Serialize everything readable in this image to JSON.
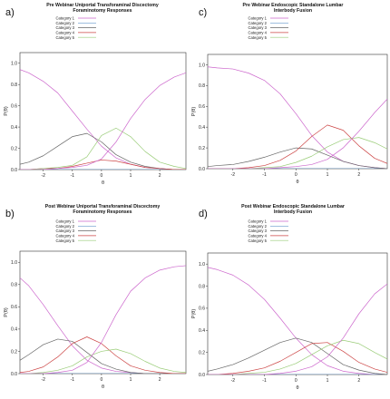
{
  "panels": [
    {
      "letter": "a)",
      "title_lines": [
        "Pre Webinar Uniportal Transforaminal Discectomy",
        "Foraminotomy Responses"
      ]
    },
    {
      "letter": "c)",
      "title_lines": [
        "Pre Webinar Endoscopic Standalone Lumbar",
        "Interbody Fusion"
      ]
    },
    {
      "letter": "b)",
      "title_lines": [
        "Post Webinar Uniportal Transforaminal Discectomy",
        "Foraminotomy Responses"
      ]
    },
    {
      "letter": "d)",
      "title_lines": [
        "Post Webinar Endoscopic Standalone Lumbar",
        "Interbody Fusion"
      ]
    }
  ],
  "legend_labels": [
    "Category 1",
    "Category 2",
    "Category 3",
    "Category 4",
    "Category 5"
  ],
  "colors": [
    "#cc66cc",
    "#6699cc",
    "#666666",
    "#cc4444",
    "#99cc77"
  ],
  "chart_data": [
    {
      "type": "line",
      "title": "Pre Webinar Uniportal Transforaminal Discectomy Foraminotomy Responses",
      "xlabel": "θ",
      "ylabel": "P(θ)",
      "xlim": [
        -2.8,
        2.9
      ],
      "ylim": [
        0,
        1.1
      ],
      "xticks": [
        -2,
        -1,
        0,
        1,
        2
      ],
      "yticks": [
        0.0,
        0.2,
        0.4,
        0.6,
        0.8,
        1.0
      ],
      "grid": false,
      "legend": "top-left",
      "x": [
        -2.8,
        -2.5,
        -2.0,
        -1.5,
        -1.0,
        -0.5,
        0.0,
        0.5,
        1.0,
        1.5,
        2.0,
        2.5,
        2.9
      ],
      "series": [
        {
          "name": "Category 1",
          "values": [
            0.94,
            0.91,
            0.83,
            0.72,
            0.55,
            0.38,
            0.22,
            0.11,
            0.05,
            0.02,
            0.01,
            0.0,
            0.0
          ]
        },
        {
          "name": "Category 2",
          "values": [
            0.0,
            0.0,
            0.0,
            0.0,
            0.0,
            0.0,
            0.0,
            0.0,
            0.0,
            0.0,
            0.0,
            0.0,
            0.0
          ]
        },
        {
          "name": "Category 3",
          "values": [
            0.05,
            0.07,
            0.13,
            0.22,
            0.31,
            0.34,
            0.26,
            0.14,
            0.07,
            0.03,
            0.01,
            0.0,
            0.0
          ]
        },
        {
          "name": "Category 4",
          "values": [
            0.0,
            0.0,
            0.01,
            0.01,
            0.03,
            0.06,
            0.09,
            0.08,
            0.05,
            0.02,
            0.01,
            0.0,
            0.0
          ]
        },
        {
          "name": "Category 5",
          "values": [
            0.0,
            0.0,
            0.01,
            0.02,
            0.04,
            0.12,
            0.32,
            0.39,
            0.31,
            0.17,
            0.07,
            0.03,
            0.01
          ]
        },
        {
          "name": "",
          "values": [
            0.0,
            0.0,
            0.0,
            0.01,
            0.02,
            0.04,
            0.1,
            0.26,
            0.48,
            0.66,
            0.79,
            0.87,
            0.91
          ]
        }
      ]
    },
    {
      "type": "line",
      "title": "Pre Webinar Endoscopic Standalone Lumbar Interbody Fusion",
      "xlabel": "θ",
      "ylabel": "P(θ)",
      "xlim": [
        -2.8,
        2.9
      ],
      "ylim": [
        0,
        1.1
      ],
      "xticks": [
        -2,
        -1,
        0,
        1,
        2
      ],
      "yticks": [
        0.0,
        0.2,
        0.4,
        0.6,
        0.8,
        1.0
      ],
      "grid": false,
      "legend": "top-left",
      "x": [
        -2.8,
        -2.5,
        -2.0,
        -1.5,
        -1.0,
        -0.5,
        0.0,
        0.5,
        1.0,
        1.5,
        2.0,
        2.5,
        2.9
      ],
      "series": [
        {
          "name": "Category 1",
          "values": [
            0.98,
            0.97,
            0.96,
            0.92,
            0.85,
            0.72,
            0.53,
            0.32,
            0.16,
            0.07,
            0.03,
            0.01,
            0.0
          ]
        },
        {
          "name": "Category 2",
          "values": [
            0.0,
            0.0,
            0.0,
            0.0,
            0.0,
            0.0,
            0.0,
            0.0,
            0.0,
            0.0,
            0.0,
            0.0,
            0.0
          ]
        },
        {
          "name": "Category 3",
          "values": [
            0.02,
            0.03,
            0.04,
            0.07,
            0.11,
            0.16,
            0.2,
            0.19,
            0.13,
            0.07,
            0.03,
            0.01,
            0.0
          ]
        },
        {
          "name": "Category 4",
          "values": [
            0.0,
            0.0,
            0.0,
            0.01,
            0.03,
            0.08,
            0.17,
            0.31,
            0.42,
            0.37,
            0.22,
            0.1,
            0.05
          ]
        },
        {
          "name": "Category 5",
          "values": [
            0.0,
            0.0,
            0.0,
            0.0,
            0.01,
            0.02,
            0.06,
            0.12,
            0.21,
            0.28,
            0.3,
            0.25,
            0.19
          ]
        },
        {
          "name": "",
          "values": [
            0.0,
            0.0,
            0.0,
            0.0,
            0.0,
            0.01,
            0.02,
            0.04,
            0.09,
            0.2,
            0.36,
            0.54,
            0.67
          ]
        }
      ]
    },
    {
      "type": "line",
      "title": "Post Webinar Uniportal Transforaminal Discectomy Foraminotomy Responses",
      "xlabel": "θ",
      "ylabel": "P(θ)",
      "xlim": [
        -2.8,
        2.9
      ],
      "ylim": [
        0,
        1.1
      ],
      "xticks": [
        -2,
        -1,
        0,
        1,
        2
      ],
      "yticks": [
        0.0,
        0.2,
        0.4,
        0.6,
        0.8,
        1.0
      ],
      "grid": false,
      "legend": "top-left",
      "x": [
        -2.8,
        -2.5,
        -2.0,
        -1.5,
        -1.0,
        -0.5,
        0.0,
        0.5,
        1.0,
        1.5,
        2.0,
        2.5,
        2.9
      ],
      "series": [
        {
          "name": "Category 1",
          "values": [
            0.86,
            0.79,
            0.62,
            0.43,
            0.25,
            0.12,
            0.05,
            0.02,
            0.01,
            0.0,
            0.0,
            0.0,
            0.0
          ]
        },
        {
          "name": "Category 2",
          "values": [
            0.0,
            0.0,
            0.0,
            0.0,
            0.0,
            0.0,
            0.0,
            0.0,
            0.0,
            0.0,
            0.0,
            0.0,
            0.0
          ]
        },
        {
          "name": "Category 3",
          "values": [
            0.12,
            0.17,
            0.26,
            0.31,
            0.29,
            0.19,
            0.09,
            0.04,
            0.01,
            0.0,
            0.0,
            0.0,
            0.0
          ]
        },
        {
          "name": "Category 4",
          "values": [
            0.01,
            0.02,
            0.06,
            0.15,
            0.27,
            0.33,
            0.27,
            0.16,
            0.07,
            0.03,
            0.01,
            0.0,
            0.0
          ]
        },
        {
          "name": "Category 5",
          "values": [
            0.0,
            0.0,
            0.01,
            0.03,
            0.07,
            0.15,
            0.2,
            0.22,
            0.18,
            0.11,
            0.05,
            0.02,
            0.01
          ]
        },
        {
          "name": "",
          "values": [
            0.0,
            0.0,
            0.0,
            0.01,
            0.03,
            0.1,
            0.28,
            0.53,
            0.74,
            0.86,
            0.93,
            0.96,
            0.97
          ]
        }
      ]
    },
    {
      "type": "line",
      "title": "Post Webinar Endoscopic Standalone Lumbar Interbody Fusion",
      "xlabel": "θ",
      "ylabel": "P(θ)",
      "xlim": [
        -2.8,
        2.9
      ],
      "ylim": [
        0,
        1.1
      ],
      "xticks": [
        -2,
        -1,
        0,
        1,
        2
      ],
      "yticks": [
        0.0,
        0.2,
        0.4,
        0.6,
        0.8,
        1.0
      ],
      "grid": false,
      "legend": "top-left",
      "x": [
        -2.8,
        -2.5,
        -2.0,
        -1.5,
        -1.0,
        -0.5,
        0.0,
        0.5,
        1.0,
        1.5,
        2.0,
        2.5,
        2.9
      ],
      "series": [
        {
          "name": "Category 1",
          "values": [
            0.97,
            0.95,
            0.9,
            0.81,
            0.68,
            0.51,
            0.33,
            0.18,
            0.08,
            0.03,
            0.01,
            0.0,
            0.0
          ]
        },
        {
          "name": "Category 2",
          "values": [
            0.0,
            0.0,
            0.0,
            0.0,
            0.0,
            0.0,
            0.0,
            0.0,
            0.0,
            0.0,
            0.0,
            0.0,
            0.0
          ]
        },
        {
          "name": "Category 3",
          "values": [
            0.03,
            0.05,
            0.09,
            0.15,
            0.22,
            0.29,
            0.33,
            0.29,
            0.19,
            0.09,
            0.04,
            0.01,
            0.0
          ]
        },
        {
          "name": "Category 4",
          "values": [
            0.0,
            0.0,
            0.01,
            0.03,
            0.06,
            0.12,
            0.2,
            0.28,
            0.29,
            0.21,
            0.11,
            0.05,
            0.02
          ]
        },
        {
          "name": "Category 5",
          "values": [
            0.0,
            0.0,
            0.0,
            0.01,
            0.02,
            0.05,
            0.1,
            0.18,
            0.26,
            0.31,
            0.28,
            0.2,
            0.14
          ]
        },
        {
          "name": "",
          "values": [
            0.0,
            0.0,
            0.0,
            0.0,
            0.0,
            0.01,
            0.03,
            0.07,
            0.16,
            0.33,
            0.55,
            0.73,
            0.82
          ]
        }
      ]
    }
  ]
}
